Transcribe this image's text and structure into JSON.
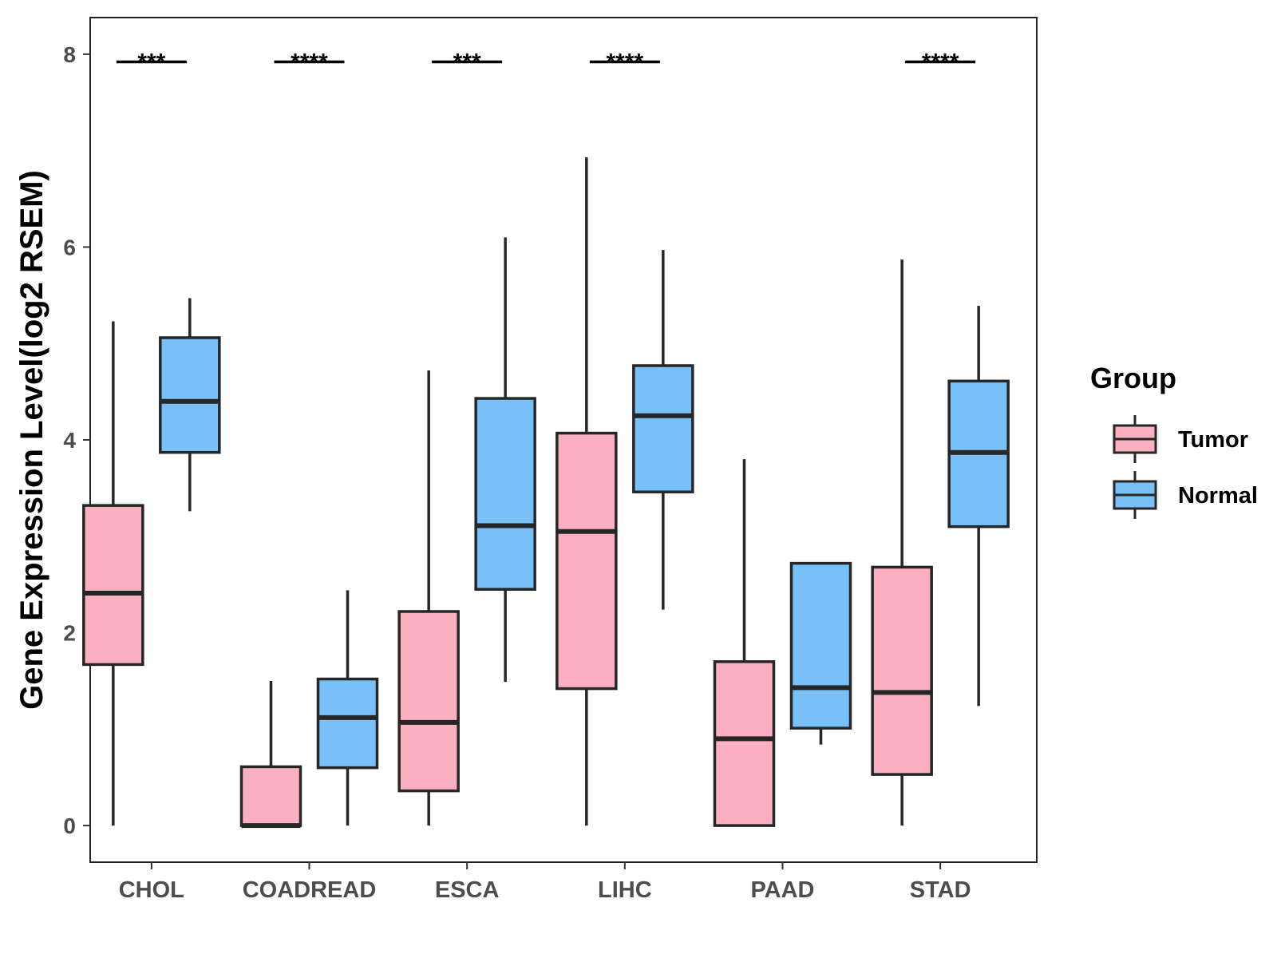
{
  "chart_data": {
    "type": "boxplot",
    "title": "",
    "xlabel": "",
    "ylabel": "Gene Expression Level(log2 RSEM)",
    "ylim": [
      -0.38,
      8.38
    ],
    "yticks": [
      0,
      2,
      4,
      6,
      8
    ],
    "grid": false,
    "legend": {
      "title": "Group",
      "position": "right",
      "entries": [
        "Tumor",
        "Normal"
      ]
    },
    "series": [
      {
        "name": "Tumor",
        "color": "#fbb0c2"
      },
      {
        "name": "Normal",
        "color": "#77c1f8"
      }
    ],
    "categories": [
      "CHOL",
      "COADREAD",
      "ESCA",
      "LIHC",
      "PAAD",
      "STAD"
    ],
    "boxes": [
      {
        "category": "CHOL",
        "group": "Tumor",
        "min": 0.0,
        "q1": 1.67,
        "median": 2.41,
        "q3": 3.32,
        "max": 5.23
      },
      {
        "category": "CHOL",
        "group": "Normal",
        "min": 3.26,
        "q1": 3.87,
        "median": 4.4,
        "q3": 5.06,
        "max": 5.47
      },
      {
        "category": "COADREAD",
        "group": "Tumor",
        "min": 0.0,
        "q1": 0.0,
        "median": 0.0,
        "q3": 0.61,
        "max": 1.5
      },
      {
        "category": "COADREAD",
        "group": "Normal",
        "min": 0.0,
        "q1": 0.6,
        "median": 1.12,
        "q3": 1.52,
        "max": 2.44
      },
      {
        "category": "ESCA",
        "group": "Tumor",
        "min": 0.0,
        "q1": 0.36,
        "median": 1.07,
        "q3": 2.22,
        "max": 4.72
      },
      {
        "category": "ESCA",
        "group": "Normal",
        "min": 1.49,
        "q1": 2.45,
        "median": 3.11,
        "q3": 4.43,
        "max": 6.1
      },
      {
        "category": "LIHC",
        "group": "Tumor",
        "min": 0.0,
        "q1": 1.42,
        "median": 3.05,
        "q3": 4.07,
        "max": 6.93
      },
      {
        "category": "LIHC",
        "group": "Normal",
        "min": 2.24,
        "q1": 3.46,
        "median": 4.25,
        "q3": 4.77,
        "max": 5.97
      },
      {
        "category": "PAAD",
        "group": "Tumor",
        "min": 0.0,
        "q1": 0.0,
        "median": 0.9,
        "q3": 1.7,
        "max": 3.8
      },
      {
        "category": "PAAD",
        "group": "Normal",
        "min": 0.84,
        "q1": 1.01,
        "median": 1.43,
        "q3": 2.72,
        "max": 2.72
      },
      {
        "category": "STAD",
        "group": "Tumor",
        "min": 0.0,
        "q1": 0.53,
        "median": 1.38,
        "q3": 2.68,
        "max": 5.87
      },
      {
        "category": "STAD",
        "group": "Normal",
        "min": 1.24,
        "q1": 3.1,
        "median": 3.87,
        "q3": 4.61,
        "max": 5.39
      }
    ],
    "annotations": [
      {
        "category": "CHOL",
        "label": "***",
        "y": 7.92
      },
      {
        "category": "COADREAD",
        "label": "****",
        "y": 7.92
      },
      {
        "category": "ESCA",
        "label": "***",
        "y": 7.92
      },
      {
        "category": "LIHC",
        "label": "****",
        "y": 7.92
      },
      {
        "category": "STAD",
        "label": "****",
        "y": 7.92
      }
    ]
  }
}
